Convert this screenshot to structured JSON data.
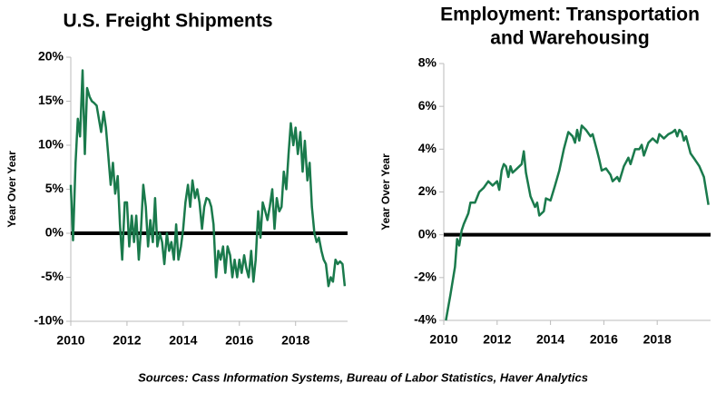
{
  "chart_data": [
    {
      "type": "line",
      "title": [
        "U.S. Freight Shipments"
      ],
      "ylabel": "Year Over Year",
      "color": "#1a7a4c",
      "zero_line": true,
      "xlim": [
        2010,
        2019.85
      ],
      "xticks": [
        2010,
        2012,
        2014,
        2016,
        2018
      ],
      "ylim": [
        -10,
        20
      ],
      "yticks": [
        {
          "value": -10,
          "label": "-10%"
        },
        {
          "value": -5,
          "label": "-5%"
        },
        {
          "value": 0,
          "label": "0%"
        },
        {
          "value": 5,
          "label": "5%"
        },
        {
          "value": 10,
          "label": "10%"
        },
        {
          "value": 15,
          "label": "15%"
        },
        {
          "value": 20,
          "label": "20%"
        }
      ],
      "x": [
        2010.0,
        2010.08,
        2010.17,
        2010.25,
        2010.33,
        2010.42,
        2010.5,
        2010.58,
        2010.67,
        2010.75,
        2010.83,
        2010.92,
        2011.0,
        2011.08,
        2011.17,
        2011.25,
        2011.33,
        2011.42,
        2011.5,
        2011.58,
        2011.67,
        2011.75,
        2011.83,
        2011.92,
        2012.0,
        2012.08,
        2012.17,
        2012.25,
        2012.33,
        2012.42,
        2012.5,
        2012.58,
        2012.67,
        2012.75,
        2012.83,
        2012.92,
        2013.0,
        2013.08,
        2013.17,
        2013.25,
        2013.33,
        2013.42,
        2013.5,
        2013.58,
        2013.67,
        2013.75,
        2013.83,
        2013.92,
        2014.0,
        2014.08,
        2014.17,
        2014.25,
        2014.33,
        2014.42,
        2014.5,
        2014.58,
        2014.67,
        2014.75,
        2014.83,
        2014.92,
        2015.0,
        2015.08,
        2015.17,
        2015.25,
        2015.33,
        2015.42,
        2015.5,
        2015.58,
        2015.67,
        2015.75,
        2015.83,
        2015.92,
        2016.0,
        2016.08,
        2016.17,
        2016.25,
        2016.33,
        2016.42,
        2016.5,
        2016.58,
        2016.67,
        2016.75,
        2016.83,
        2016.92,
        2017.0,
        2017.08,
        2017.17,
        2017.25,
        2017.33,
        2017.42,
        2017.5,
        2017.58,
        2017.67,
        2017.75,
        2017.83,
        2017.92,
        2018.0,
        2018.08,
        2018.17,
        2018.25,
        2018.33,
        2018.42,
        2018.5,
        2018.58,
        2018.67,
        2018.75,
        2018.83,
        2018.92,
        2019.0,
        2019.08,
        2019.17,
        2019.25,
        2019.33,
        2019.42,
        2019.5,
        2019.58,
        2019.67,
        2019.75
      ],
      "values": [
        5.5,
        -0.8,
        8,
        13,
        11,
        18.5,
        9,
        16.5,
        15.5,
        15,
        14.8,
        14.5,
        13,
        11.5,
        13.8,
        12,
        9,
        5.5,
        8,
        4.5,
        6.5,
        1,
        -3,
        3.5,
        3.5,
        -1.5,
        2,
        -1,
        2,
        -3,
        0.5,
        5.5,
        3,
        -1.5,
        1.5,
        -1,
        4,
        -1.5,
        0,
        -1,
        -3.5,
        0,
        -2,
        -1,
        -3,
        1,
        -3,
        -1.5,
        0.5,
        3.5,
        5.5,
        3,
        6,
        4,
        5,
        3.5,
        0.5,
        3,
        4,
        3.8,
        3,
        1,
        -5,
        -2,
        -3,
        -1.5,
        -4.5,
        -1.5,
        -2.5,
        -5,
        -3,
        -5,
        -3,
        -4.5,
        -2.5,
        -4,
        -5,
        -2,
        -5.5,
        -3,
        2.5,
        -0.5,
        3.5,
        2.5,
        1.5,
        3,
        5,
        0.5,
        4,
        2.5,
        3,
        7,
        5,
        9,
        12.5,
        10,
        12,
        9,
        11.5,
        7,
        10.5,
        6,
        8,
        3,
        0,
        -1,
        -0.5,
        -2,
        -3,
        -3.5,
        -6,
        -5,
        -5.5,
        -3,
        -3.5,
        -3.2,
        -3.5,
        -6
      ]
    },
    {
      "type": "line",
      "title": [
        "Employment: Transportation",
        "and Warehousing"
      ],
      "ylabel": "Year Over Year",
      "color": "#1a7a4c",
      "zero_line": true,
      "xlim": [
        2010,
        2020
      ],
      "xticks": [
        2010,
        2012,
        2014,
        2016,
        2018
      ],
      "ylim": [
        -4,
        8
      ],
      "yticks": [
        {
          "value": -4,
          "label": "-4%"
        },
        {
          "value": -2,
          "label": "-2%"
        },
        {
          "value": 0,
          "label": "0%"
        },
        {
          "value": 2,
          "label": "2%"
        },
        {
          "value": 4,
          "label": "4%"
        },
        {
          "value": 6,
          "label": "6%"
        },
        {
          "value": 8,
          "label": "8%"
        }
      ],
      "x": [
        2010.08,
        2010.25,
        2010.42,
        2010.5,
        2010.58,
        2010.67,
        2010.75,
        2010.92,
        2011.0,
        2011.17,
        2011.33,
        2011.5,
        2011.67,
        2011.83,
        2012.0,
        2012.08,
        2012.17,
        2012.25,
        2012.33,
        2012.42,
        2012.5,
        2012.58,
        2012.75,
        2012.92,
        2013.0,
        2013.08,
        2013.25,
        2013.42,
        2013.5,
        2013.58,
        2013.75,
        2013.83,
        2014.0,
        2014.17,
        2014.33,
        2014.5,
        2014.67,
        2014.83,
        2014.92,
        2015.0,
        2015.08,
        2015.17,
        2015.33,
        2015.5,
        2015.58,
        2015.75,
        2015.83,
        2015.92,
        2016.08,
        2016.25,
        2016.33,
        2016.5,
        2016.58,
        2016.75,
        2016.92,
        2017.0,
        2017.17,
        2017.33,
        2017.42,
        2017.5,
        2017.67,
        2017.83,
        2018.0,
        2018.08,
        2018.25,
        2018.42,
        2018.58,
        2018.67,
        2018.75,
        2018.83,
        2018.92,
        2019.0,
        2019.08,
        2019.25,
        2019.42,
        2019.58,
        2019.75,
        2019.92
      ],
      "values": [
        -4,
        -2.8,
        -1.5,
        -0.2,
        -0.5,
        0.2,
        0.5,
        1,
        1.5,
        1.5,
        2,
        2.2,
        2.5,
        2.3,
        2.5,
        2.1,
        3,
        3.3,
        3.2,
        2.7,
        3.2,
        2.9,
        3.1,
        3.3,
        3.9,
        2.9,
        1.8,
        1.3,
        1.5,
        0.9,
        1.1,
        1.7,
        1.6,
        2.3,
        3.0,
        4.0,
        4.8,
        4.6,
        4.3,
        4.9,
        4.4,
        5.1,
        4.9,
        4.6,
        4.7,
        3.9,
        3.5,
        3.0,
        3.1,
        2.8,
        2.5,
        2.7,
        2.5,
        3.2,
        3.6,
        3.3,
        4.0,
        4.0,
        4.2,
        3.7,
        4.3,
        4.5,
        4.3,
        4.7,
        4.5,
        4.7,
        4.8,
        4.9,
        4.6,
        4.9,
        4.8,
        4.4,
        4.6,
        3.8,
        3.5,
        3.2,
        2.7,
        1.4
      ]
    }
  ],
  "source": "Sources: Cass Information Systems, Bureau of Labor Statistics, Haver Analytics"
}
